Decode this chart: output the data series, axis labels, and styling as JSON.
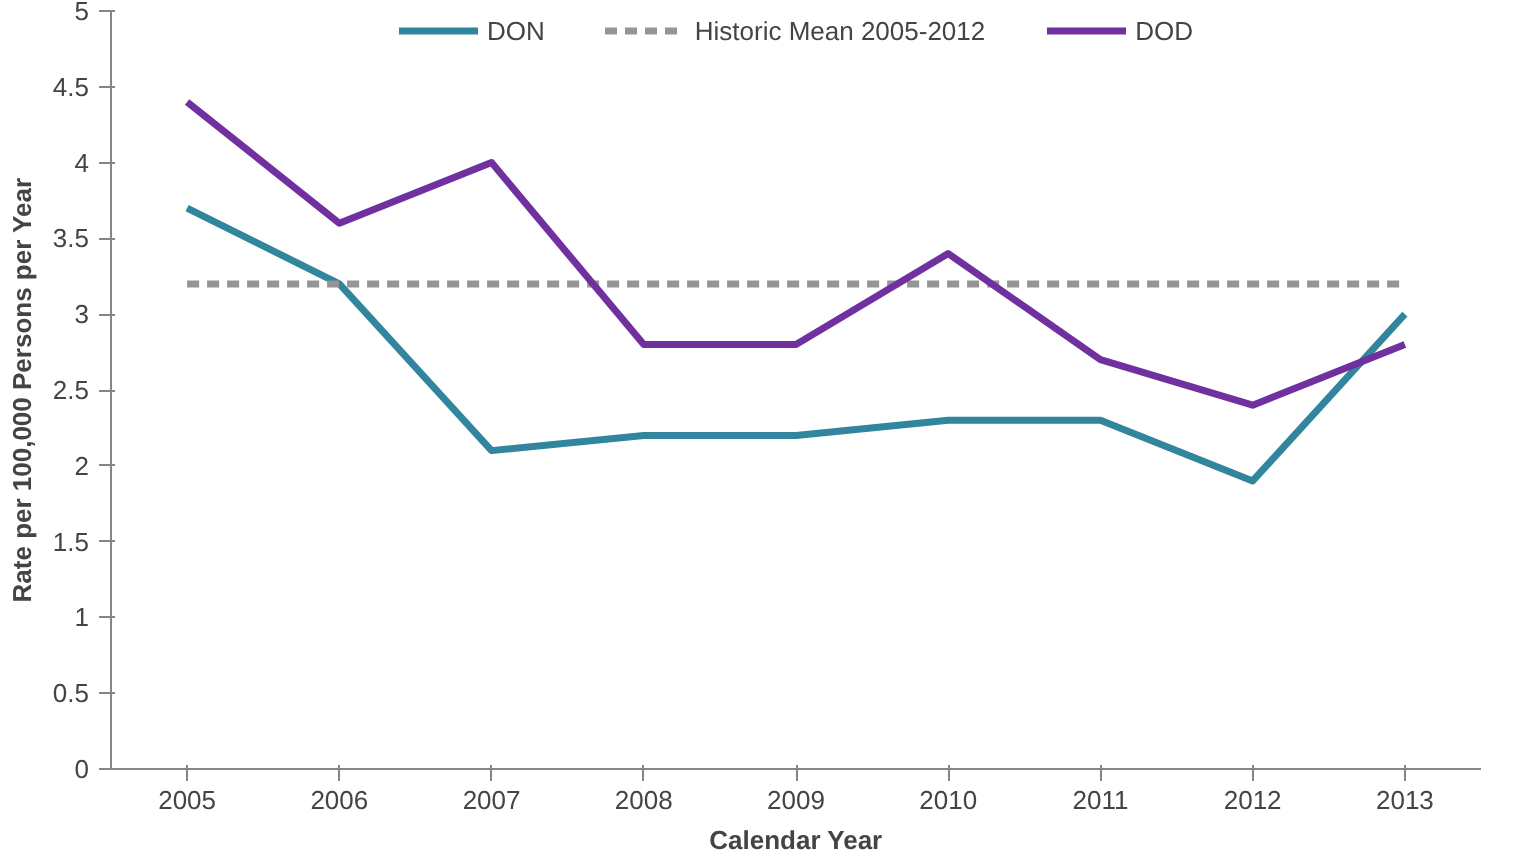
{
  "chart_data": {
    "type": "line",
    "xlabel": "Calendar Year",
    "ylabel": "Rate per 100,000 Persons per Year",
    "categories": [
      "2005",
      "2006",
      "2007",
      "2008",
      "2009",
      "2010",
      "2011",
      "2012",
      "2013"
    ],
    "series": [
      {
        "name": "DON",
        "color": "#31859c",
        "values": [
          3.7,
          3.2,
          2.1,
          2.2,
          2.2,
          2.3,
          2.3,
          1.9,
          3.0
        ]
      },
      {
        "name": "Historic Mean 2005-2012",
        "color": "#959595",
        "line_style": "dashed",
        "values": [
          3.2,
          3.2,
          3.2,
          3.2,
          3.2,
          3.2,
          3.2,
          3.2,
          3.2
        ]
      },
      {
        "name": "DOD",
        "color": "#7030a0",
        "values": [
          4.4,
          3.6,
          4.0,
          2.8,
          2.8,
          3.4,
          2.7,
          2.4,
          2.8
        ]
      }
    ],
    "ylim": [
      0,
      5
    ],
    "yticks": [
      0,
      0.5,
      1,
      1.5,
      2,
      2.5,
      3,
      3.5,
      4,
      4.5,
      5
    ],
    "grid": false,
    "legend": "top",
    "marker": "none",
    "line_style": "solid"
  }
}
